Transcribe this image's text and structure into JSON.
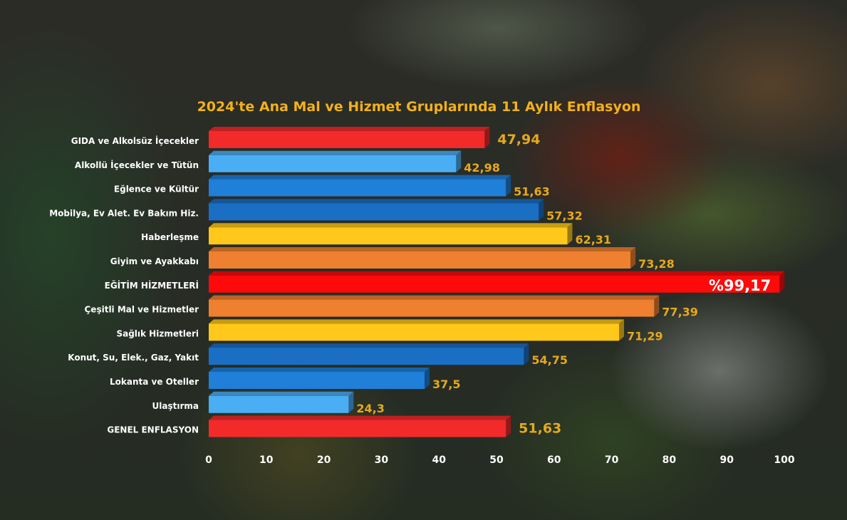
{
  "chart_data": {
    "type": "bar",
    "orientation": "horizontal",
    "title": "2024'te Ana Mal ve Hizmet Gruplarında 11 Aylık Enflasyon",
    "categories": [
      "GIDA ve Alkolsüz İçecekler",
      "Alkollü İçecekler ve Tütün",
      "Eğlence ve Kültür",
      "Mobilya, Ev Alet. Ev Bakım Hiz.",
      "Haberleşme",
      "Giyim ve Ayakkabı",
      "EĞİTİM HİZMETLERİ",
      "Çeşitli Mal ve Hizmetler",
      "Sağlık Hizmetleri",
      "Konut, Su, Elek., Gaz, Yakıt",
      "Lokanta ve Oteller",
      "Ulaştırma",
      "GENEL ENFLASYON"
    ],
    "values": [
      47.94,
      42.98,
      51.63,
      57.32,
      62.31,
      73.28,
      99.17,
      77.39,
      71.29,
      54.75,
      37.5,
      24.3,
      51.63
    ],
    "value_labels": [
      "47,94",
      "42,98",
      "51,63",
      "57,32",
      "62,31",
      "73,28",
      "%99,17",
      "77,39",
      "71,29",
      "54,75",
      "37,5",
      "24,3",
      "51,63"
    ],
    "bar_colors": [
      "#f22a2a",
      "#4aaef5",
      "#1f7fd9",
      "#1a6fc4",
      "#ffc81a",
      "#ee8030",
      "#ff0a0a",
      "#ee8030",
      "#ffc81a",
      "#1a6fc4",
      "#1f7fd9",
      "#4aaef5",
      "#f22a2a"
    ],
    "xlim": [
      0,
      100
    ],
    "x_ticks": [
      0,
      10,
      20,
      30,
      40,
      50,
      60,
      70,
      80,
      90,
      100
    ],
    "xlabel": "",
    "ylabel": "",
    "grid": false,
    "legend": "none"
  }
}
